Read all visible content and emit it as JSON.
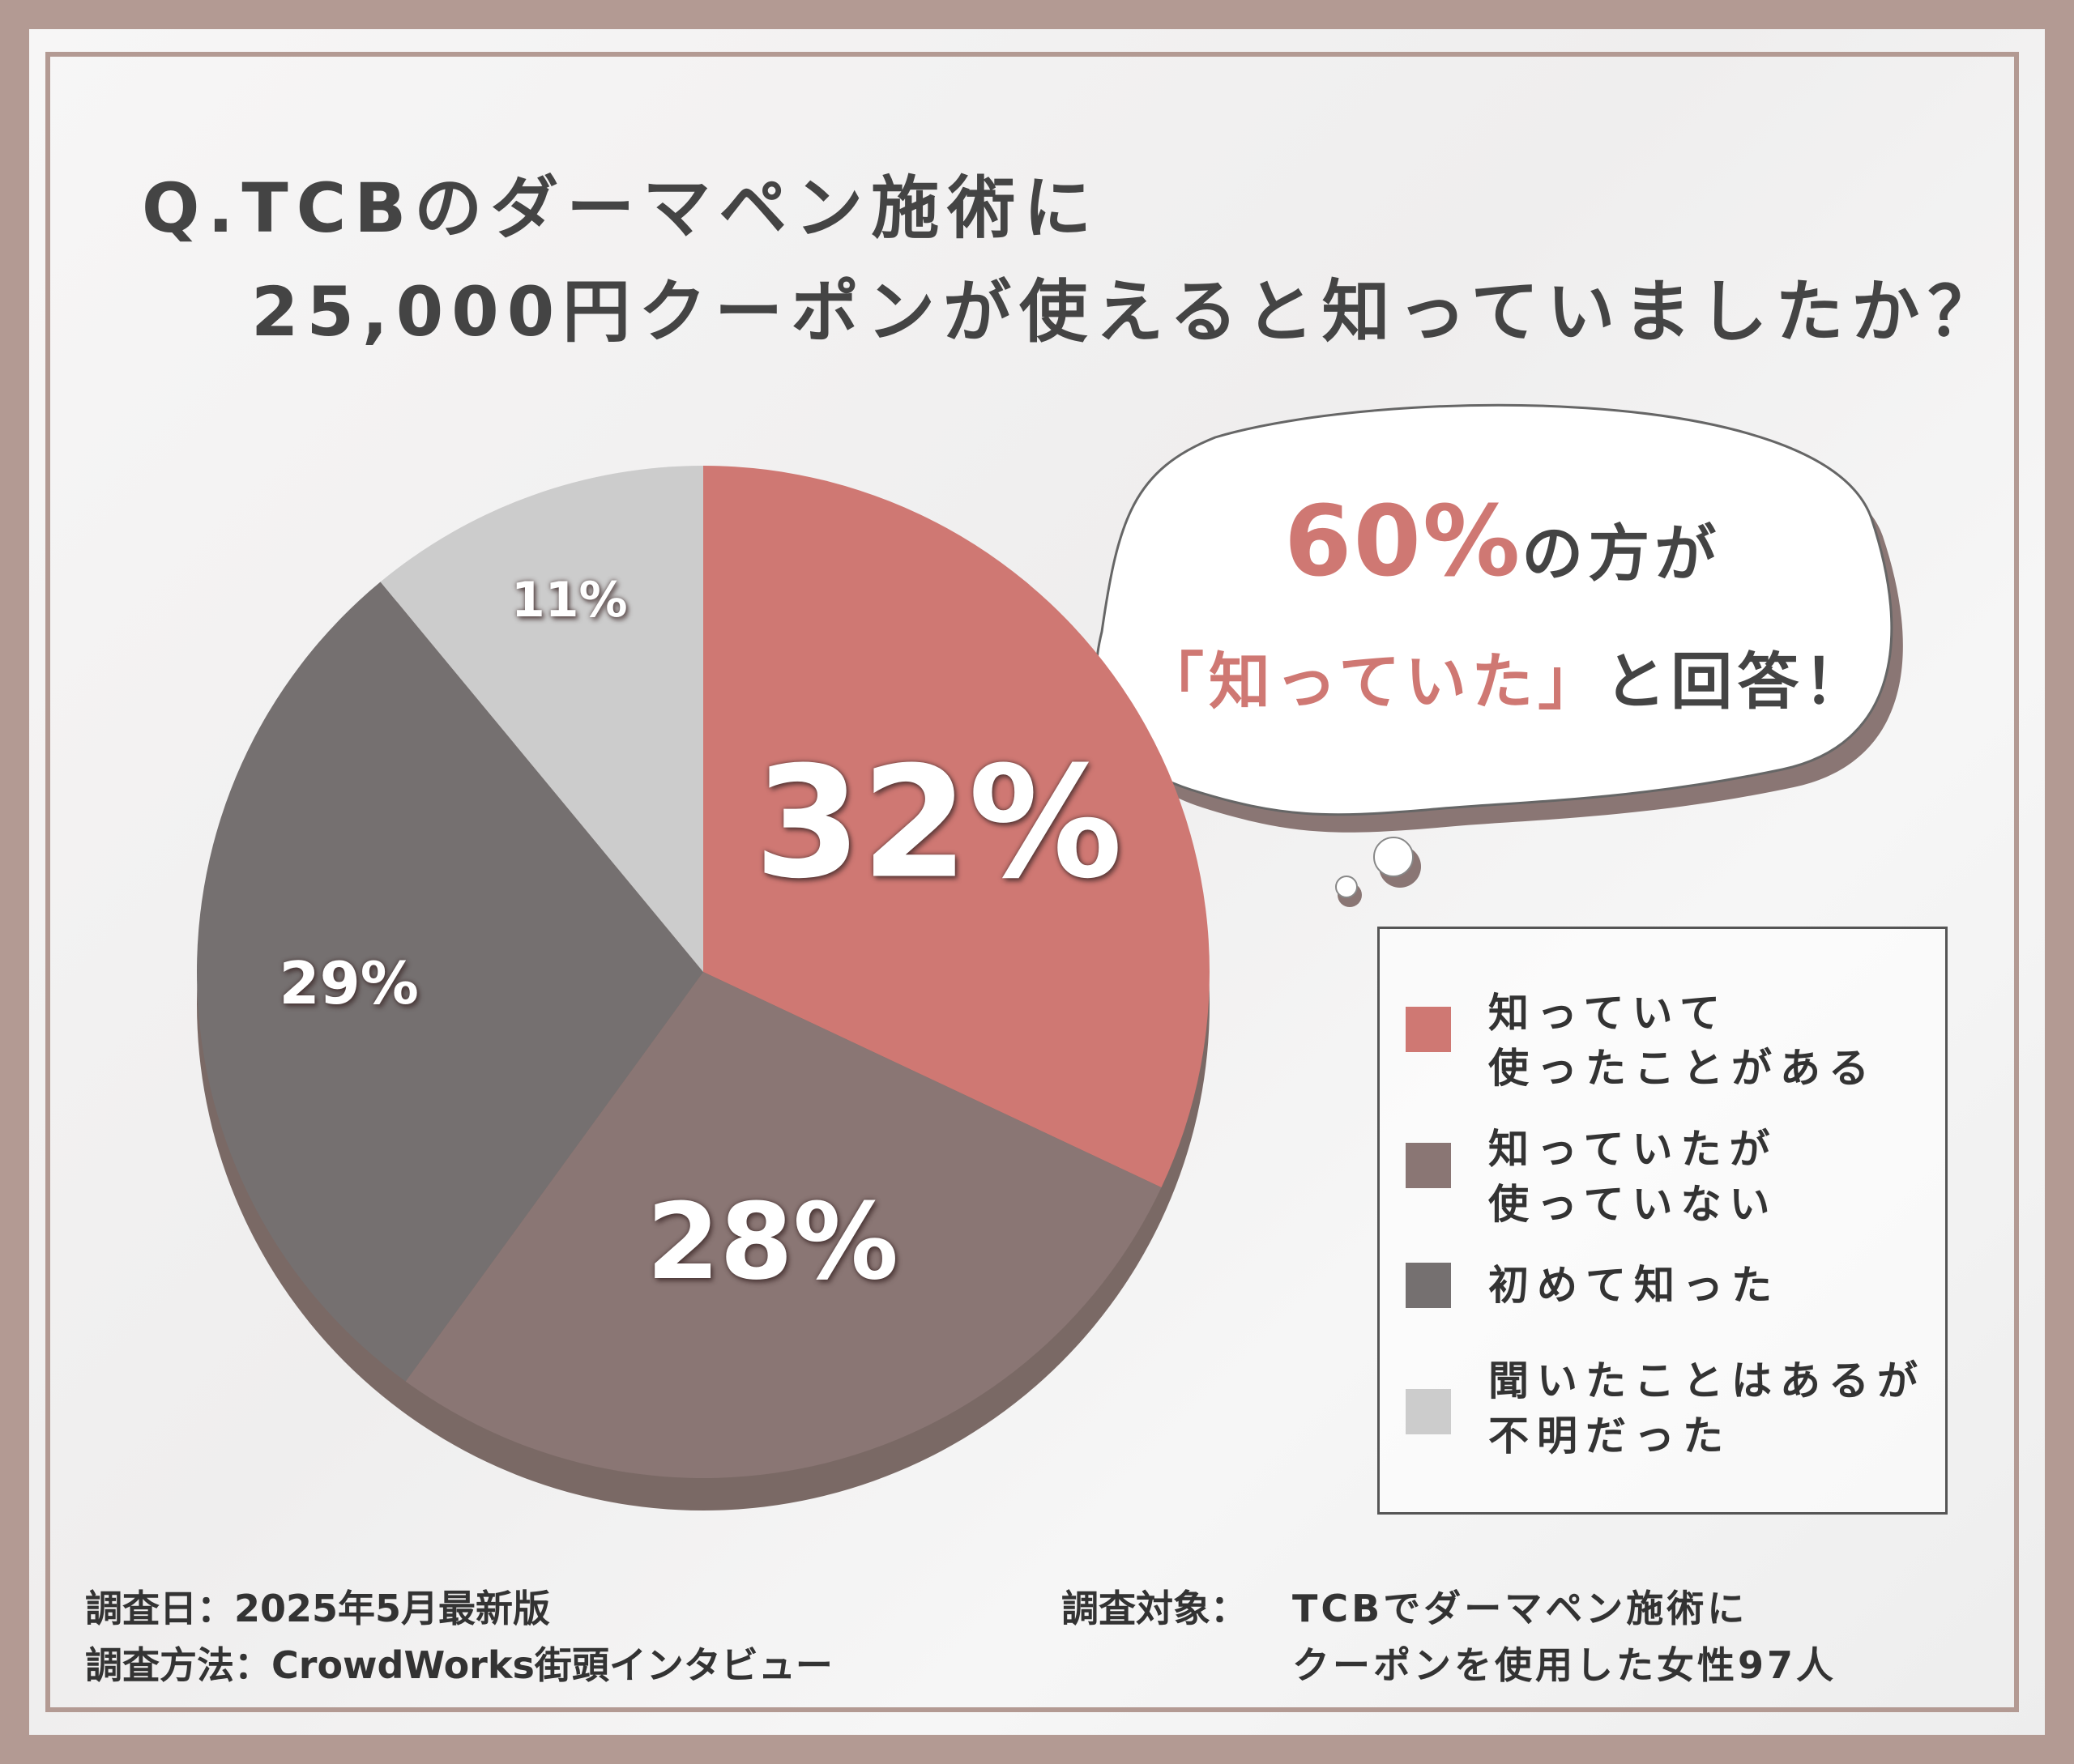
{
  "colors": {
    "outer": "#b39a93",
    "accent": "#cf7873",
    "mauve": "#8a7674",
    "dark": "#757070",
    "light": "#cccccc",
    "text": "#444444"
  },
  "title": {
    "line1": "Q.TCBのダーマペン施術に",
    "line2": "25,000円クーポンが使えると知っていましたか？"
  },
  "bubble": {
    "percent": "60%",
    "line1_suffix": "の方が",
    "line2_quote": "「知っていた」",
    "line2_suffix": "と回答！"
  },
  "chart_data": {
    "type": "pie",
    "slices": [
      {
        "label": "知っていて\n使ったことがある",
        "value": 32,
        "display": "32%",
        "color": "#cf7873"
      },
      {
        "label": "知っていたが\n使っていない",
        "value": 28,
        "display": "28%",
        "color": "#8a7674"
      },
      {
        "label": "初めて知った",
        "value": 29,
        "display": "29%",
        "color": "#757070"
      },
      {
        "label": "聞いたことはあるが\n不明だった",
        "value": 11,
        "display": "11%",
        "color": "#cccccc"
      }
    ]
  },
  "footer": {
    "date": "調査日：2025年5月最新版",
    "method": "調査方法：CrowdWorks街頭インタビュー",
    "target_label": "調査対象：",
    "target_line1": "TCBでダーマペン施術に",
    "target_line2": "クーポンを使用した女性97人"
  }
}
